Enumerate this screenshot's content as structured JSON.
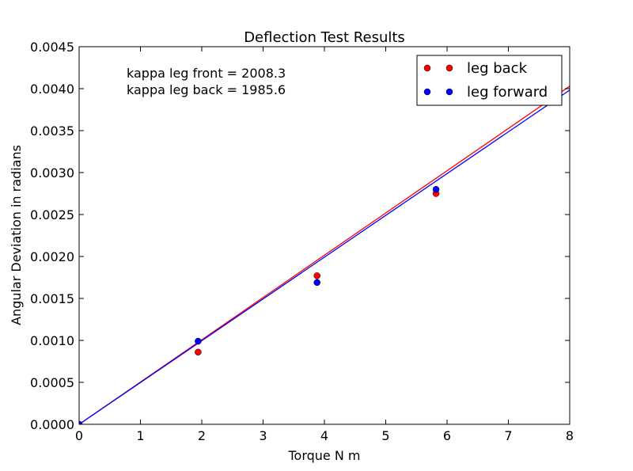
{
  "chart_data": {
    "type": "scatter",
    "title": "Deflection Test Results",
    "xlabel": "Torque N m",
    "ylabel": "Angular Deviation in radians",
    "xlim": [
      0,
      8
    ],
    "ylim": [
      0,
      0.0045
    ],
    "xticks": [
      0,
      1,
      2,
      3,
      4,
      5,
      6,
      7,
      8
    ],
    "xtick_labels": [
      "0",
      "1",
      "2",
      "3",
      "4",
      "5",
      "6",
      "7",
      "8"
    ],
    "yticks": [
      0,
      0.0005,
      0.001,
      0.0015,
      0.002,
      0.0025,
      0.003,
      0.0035,
      0.004,
      0.0045
    ],
    "ytick_labels": [
      "0.0000",
      "0.0005",
      "0.0010",
      "0.0015",
      "0.0020",
      "0.0025",
      "0.0030",
      "0.0035",
      "0.0040",
      "0.0045"
    ],
    "grid": false,
    "legend_position": "top-right",
    "annotations": [
      "kappa leg front = 2008.3",
      "kappa leg back = 1985.6"
    ],
    "series": [
      {
        "name": "leg back",
        "color": "#ff0000",
        "x": [
          0,
          1.94,
          3.88,
          5.82
        ],
        "y": [
          0,
          0.00086,
          0.00177,
          0.00275
        ],
        "fit_slope": 0.000503626
      },
      {
        "name": "leg forward",
        "color": "#0000ff",
        "x": [
          0,
          1.94,
          3.88,
          5.82
        ],
        "y": [
          0,
          0.00099,
          0.00169,
          0.0028
        ],
        "fit_slope": 0.000497934
      }
    ]
  }
}
